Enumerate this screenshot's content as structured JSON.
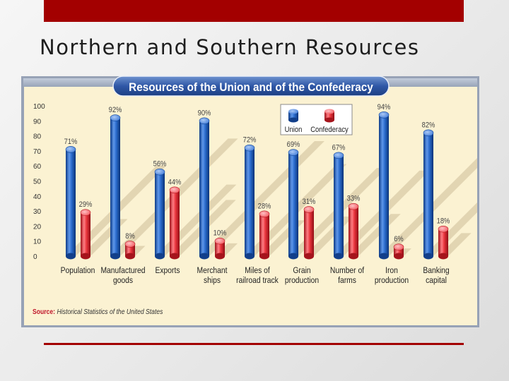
{
  "slide": {
    "title": "Northern and Southern Resources"
  },
  "chart_data": {
    "type": "bar",
    "title": "Resources of the Union and of the Confederacy",
    "source_label": "Source:",
    "source_text": "Historical Statistics of the United States",
    "ylim": [
      0,
      100
    ],
    "yticks": [
      "0",
      "10",
      "20",
      "30",
      "40",
      "50",
      "60",
      "70",
      "80",
      "90",
      "100"
    ],
    "grid": false,
    "legend_position": "top-center",
    "categories": [
      [
        "Population"
      ],
      [
        "Manufactured",
        "goods"
      ],
      [
        "Exports"
      ],
      [
        "Merchant",
        "ships"
      ],
      [
        "Miles of",
        "railroad track"
      ],
      [
        "Grain",
        "production"
      ],
      [
        "Number of",
        "farms"
      ],
      [
        "Iron",
        "production"
      ],
      [
        "Banking",
        "capital"
      ]
    ],
    "series": [
      {
        "name": "Union",
        "color": "#1c5fbf",
        "values": [
          71,
          92,
          56,
          90,
          72,
          69,
          67,
          94,
          82
        ],
        "labels": [
          "71%",
          "92%",
          "56%",
          "90%",
          "72%",
          "69%",
          "67%",
          "94%",
          "82%"
        ]
      },
      {
        "name": "Confederacy",
        "color": "#e8343c",
        "values": [
          29,
          8,
          44,
          10,
          28,
          31,
          33,
          6,
          18
        ],
        "labels": [
          "29%",
          "8%",
          "44%",
          "10%",
          "28%",
          "31%",
          "33%",
          "6%",
          "18%"
        ]
      }
    ]
  }
}
